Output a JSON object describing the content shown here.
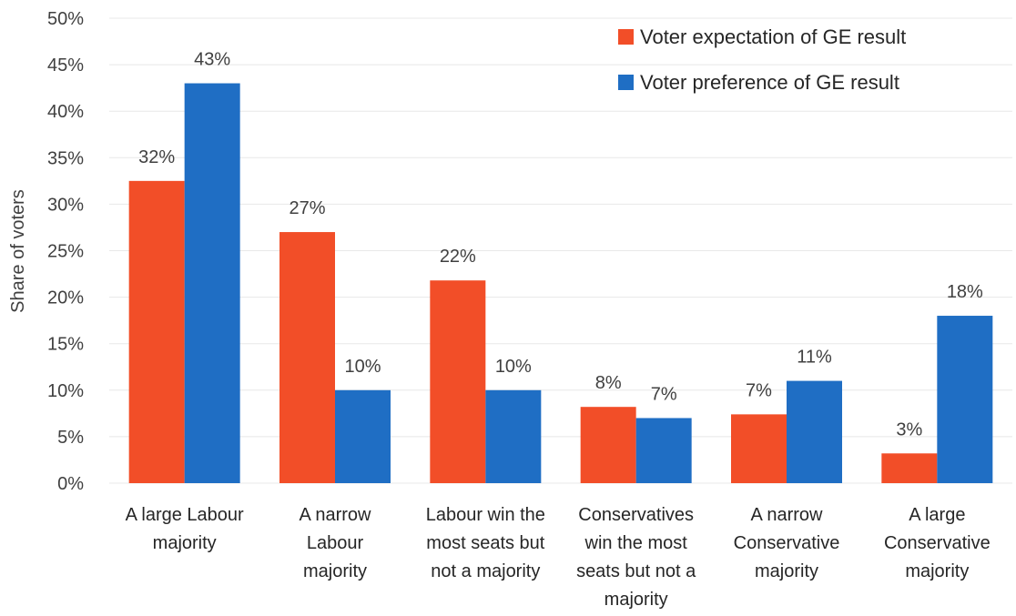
{
  "chart_data": {
    "type": "bar",
    "ylabel": "Share of voters",
    "ylim": [
      0,
      50
    ],
    "yticks": [
      "0%",
      "5%",
      "10%",
      "15%",
      "20%",
      "25%",
      "30%",
      "35%",
      "40%",
      "45%",
      "50%"
    ],
    "grid": true,
    "legend_position": "top-right",
    "categories": [
      [
        "A large Labour",
        "majority"
      ],
      [
        "A narrow",
        "Labour",
        "majority"
      ],
      [
        "Labour win the",
        "most seats but",
        "not a majority"
      ],
      [
        "Conservatives",
        "win the most",
        "seats but not a",
        "majority"
      ],
      [
        "A narrow",
        "Conservative",
        "majority"
      ],
      [
        "A large",
        "Conservative",
        "majority"
      ]
    ],
    "series": [
      {
        "name": "Voter expectation of GE result",
        "color": "#f24e28",
        "values": [
          32.5,
          27,
          21.8,
          8.2,
          7.4,
          3.2
        ],
        "labels": [
          "32%",
          "27%",
          "22%",
          "8%",
          "7%",
          "3%"
        ]
      },
      {
        "name": "Voter preference of GE result",
        "color": "#1f6ec4",
        "values": [
          43,
          10,
          10,
          7,
          11,
          18
        ],
        "labels": [
          "43%",
          "10%",
          "10%",
          "7%",
          "11%",
          "18%"
        ]
      }
    ]
  }
}
